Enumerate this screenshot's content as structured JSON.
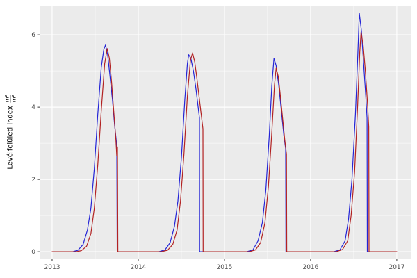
{
  "chart_data": {
    "type": "line",
    "title": "",
    "xlabel": "",
    "ylabel_text": "Levélfelületi index",
    "ylabel_frac_num": "m²",
    "ylabel_frac_den": "m²",
    "legend_position": "none",
    "panel_bg": "#ebebeb",
    "grid_color": "#ffffff",
    "tick_text_color": "#4d4d4d",
    "tick_mark_color": "#333333",
    "xlim": [
      2012.855,
      2017.17
    ],
    "ylim": [
      -0.19,
      6.81
    ],
    "x_ticks": [
      2013,
      2014,
      2015,
      2016,
      2017
    ],
    "x_tick_labels": [
      "2013",
      "2014",
      "2015",
      "2016",
      "2017"
    ],
    "x_minor_ticks": [
      2013.5,
      2014.5,
      2015.5,
      2016.5
    ],
    "y_ticks": [
      0,
      2,
      4,
      6
    ],
    "y_tick_labels": [
      "0",
      "2",
      "4",
      "6"
    ],
    "y_minor_ticks": [
      1,
      3,
      5
    ],
    "series": [
      {
        "id": "series-blue",
        "color": "#2424d6",
        "points": [
          [
            2013.0,
            0
          ],
          [
            2013.24,
            0
          ],
          [
            2013.3,
            0.04
          ],
          [
            2013.36,
            0.2
          ],
          [
            2013.41,
            0.6
          ],
          [
            2013.45,
            1.2
          ],
          [
            2013.49,
            2.3
          ],
          [
            2013.53,
            3.8
          ],
          [
            2013.57,
            5.1
          ],
          [
            2013.6,
            5.6
          ],
          [
            2013.62,
            5.72
          ],
          [
            2013.645,
            5.45
          ],
          [
            2013.67,
            4.9
          ],
          [
            2013.7,
            4.2
          ],
          [
            2013.725,
            3.5
          ],
          [
            2013.75,
            2.95
          ],
          [
            2013.755,
            0
          ],
          [
            2013.8,
            0
          ],
          [
            2014.0,
            0
          ],
          [
            2014.24,
            0
          ],
          [
            2014.31,
            0.05
          ],
          [
            2014.37,
            0.25
          ],
          [
            2014.42,
            0.7
          ],
          [
            2014.46,
            1.4
          ],
          [
            2014.5,
            2.6
          ],
          [
            2014.54,
            4.2
          ],
          [
            2014.57,
            5.2
          ],
          [
            2014.585,
            5.45
          ],
          [
            2014.61,
            5.35
          ],
          [
            2014.64,
            5.0
          ],
          [
            2014.67,
            4.5
          ],
          [
            2014.695,
            4.0
          ],
          [
            2014.71,
            3.7
          ],
          [
            2014.712,
            0
          ],
          [
            2014.75,
            0
          ],
          [
            2015.0,
            0
          ],
          [
            2015.26,
            0
          ],
          [
            2015.33,
            0.05
          ],
          [
            2015.39,
            0.3
          ],
          [
            2015.44,
            0.8
          ],
          [
            2015.48,
            1.7
          ],
          [
            2015.52,
            3.2
          ],
          [
            2015.55,
            4.6
          ],
          [
            2015.575,
            5.35
          ],
          [
            2015.6,
            5.15
          ],
          [
            2015.63,
            4.6
          ],
          [
            2015.66,
            3.9
          ],
          [
            2015.69,
            3.2
          ],
          [
            2015.71,
            2.85
          ],
          [
            2015.713,
            0
          ],
          [
            2015.75,
            0
          ],
          [
            2016.0,
            0
          ],
          [
            2016.27,
            0
          ],
          [
            2016.34,
            0.05
          ],
          [
            2016.4,
            0.3
          ],
          [
            2016.44,
            0.9
          ],
          [
            2016.48,
            2.0
          ],
          [
            2016.52,
            3.8
          ],
          [
            2016.55,
            5.6
          ],
          [
            2016.565,
            6.6
          ],
          [
            2016.59,
            6.1
          ],
          [
            2016.615,
            5.2
          ],
          [
            2016.64,
            4.3
          ],
          [
            2016.655,
            3.7
          ],
          [
            2016.658,
            0
          ],
          [
            2016.7,
            0
          ],
          [
            2017.0,
            0
          ]
        ]
      },
      {
        "id": "series-red",
        "color": "#b22222",
        "points": [
          [
            2013.0,
            0
          ],
          [
            2013.28,
            0
          ],
          [
            2013.34,
            0.03
          ],
          [
            2013.4,
            0.15
          ],
          [
            2013.45,
            0.5
          ],
          [
            2013.49,
            1.2
          ],
          [
            2013.53,
            2.4
          ],
          [
            2013.57,
            3.9
          ],
          [
            2013.61,
            5.2
          ],
          [
            2013.64,
            5.62
          ],
          [
            2013.665,
            5.35
          ],
          [
            2013.69,
            4.7
          ],
          [
            2013.715,
            3.9
          ],
          [
            2013.74,
            3.1
          ],
          [
            2013.75,
            2.65
          ],
          [
            2013.758,
            2.9
          ],
          [
            2013.763,
            0
          ],
          [
            2013.8,
            0
          ],
          [
            2014.0,
            0
          ],
          [
            2014.27,
            0
          ],
          [
            2014.34,
            0.04
          ],
          [
            2014.4,
            0.2
          ],
          [
            2014.45,
            0.6
          ],
          [
            2014.49,
            1.4
          ],
          [
            2014.53,
            2.7
          ],
          [
            2014.57,
            4.3
          ],
          [
            2014.605,
            5.3
          ],
          [
            2014.63,
            5.5
          ],
          [
            2014.655,
            5.25
          ],
          [
            2014.68,
            4.8
          ],
          [
            2014.705,
            4.3
          ],
          [
            2014.73,
            3.8
          ],
          [
            2014.75,
            3.4
          ],
          [
            2014.753,
            0
          ],
          [
            2014.79,
            0
          ],
          [
            2015.0,
            0
          ],
          [
            2015.29,
            0
          ],
          [
            2015.36,
            0.05
          ],
          [
            2015.42,
            0.25
          ],
          [
            2015.47,
            0.8
          ],
          [
            2015.51,
            1.8
          ],
          [
            2015.55,
            3.3
          ],
          [
            2015.58,
            4.6
          ],
          [
            2015.6,
            5.08
          ],
          [
            2015.625,
            4.85
          ],
          [
            2015.65,
            4.3
          ],
          [
            2015.675,
            3.7
          ],
          [
            2015.7,
            3.1
          ],
          [
            2015.72,
            2.7
          ],
          [
            2015.723,
            0
          ],
          [
            2015.76,
            0
          ],
          [
            2016.0,
            0
          ],
          [
            2016.3,
            0
          ],
          [
            2016.37,
            0.06
          ],
          [
            2016.43,
            0.3
          ],
          [
            2016.47,
            1.0
          ],
          [
            2016.51,
            2.2
          ],
          [
            2016.545,
            4.0
          ],
          [
            2016.57,
            5.5
          ],
          [
            2016.585,
            6.08
          ],
          [
            2016.61,
            5.7
          ],
          [
            2016.635,
            5.0
          ],
          [
            2016.66,
            4.1
          ],
          [
            2016.675,
            3.45
          ],
          [
            2016.678,
            0
          ],
          [
            2016.72,
            0
          ],
          [
            2017.0,
            0
          ]
        ]
      }
    ]
  }
}
